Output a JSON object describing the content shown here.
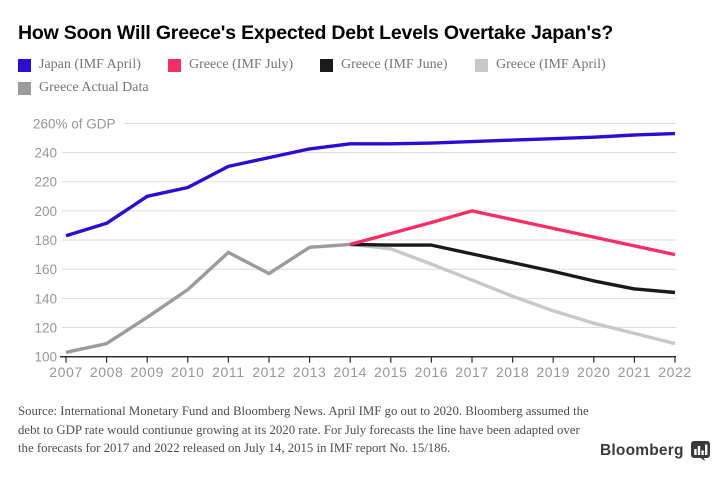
{
  "title": "How Soon Will Greece's Expected Debt Levels Overtake Japan's?",
  "legend": {
    "items": [
      "Japan (IMF April)",
      "Greece (IMF July)",
      "Greece (IMF June)",
      "Greece (IMF April)",
      "Greece Actual Data"
    ]
  },
  "chart_data": {
    "type": "line",
    "title": "How Soon Will Greece's Expected Debt Levels Overtake Japan's?",
    "ylabel": "% of GDP",
    "y_top_label": "260% of GDP",
    "xlim": [
      2007,
      2022
    ],
    "ylim": [
      100,
      260
    ],
    "grid": true,
    "legend_position": "top-left",
    "x_ticks": [
      2007,
      2008,
      2009,
      2010,
      2011,
      2012,
      2013,
      2014,
      2015,
      2016,
      2017,
      2018,
      2019,
      2020,
      2021,
      2022
    ],
    "y_ticks": [
      100,
      120,
      140,
      160,
      180,
      200,
      220,
      240,
      260
    ],
    "series": [
      {
        "name": "Japan (IMF April)",
        "color": "#2b0dd6",
        "x": [
          2007,
          2008,
          2009,
          2010,
          2011,
          2012,
          2013,
          2014,
          2015,
          2016,
          2017,
          2018,
          2019,
          2020,
          2021,
          2022
        ],
        "values": [
          183,
          191.5,
          210,
          216,
          230.5,
          236.5,
          242.5,
          246,
          246,
          246.5,
          247.5,
          248.5,
          249.5,
          250.5,
          252,
          253
        ]
      },
      {
        "name": "Greece (IMF July)",
        "color": "#fa2d64",
        "x": [
          2014,
          2015,
          2016,
          2017,
          2018,
          2019,
          2020,
          2021,
          2022
        ],
        "values": [
          177,
          184.5,
          192,
          200,
          194,
          188,
          182,
          176,
          170
        ]
      },
      {
        "name": "Greece (IMF June)",
        "color": "#1a1a1a",
        "x": [
          2014,
          2015,
          2016,
          2017,
          2018,
          2019,
          2020,
          2021,
          2022
        ],
        "values": [
          177,
          176.5,
          176.5,
          170.5,
          164.5,
          158.5,
          152,
          146.5,
          144
        ]
      },
      {
        "name": "Greece (IMF April)",
        "color": "#c8c8c8",
        "x": [
          2014,
          2015,
          2016,
          2017,
          2018,
          2019,
          2020,
          2021,
          2022
        ],
        "values": [
          177,
          174,
          163.5,
          152.5,
          141.5,
          131.5,
          123,
          116,
          109
        ]
      },
      {
        "name": "Greece Actual Data",
        "color": "#9b9b9b",
        "x": [
          2007,
          2008,
          2009,
          2010,
          2011,
          2012,
          2013,
          2014
        ],
        "values": [
          103,
          109,
          127,
          146,
          171.5,
          157,
          175,
          177
        ]
      }
    ]
  },
  "source": {
    "lines": [
      "Source: International Monetary Fund and Bloomberg News. April IMF go out to 2020. Bloomberg assumed the",
      "debt to GDP rate would contiunue growing at its 2020 rate. For July forecasts the line have been adapted over",
      "the forecasts for 2017 and 2022 released on July 14, 2015 in IMF report No. 15/186."
    ]
  },
  "footer": {
    "brand": "Bloomberg"
  }
}
